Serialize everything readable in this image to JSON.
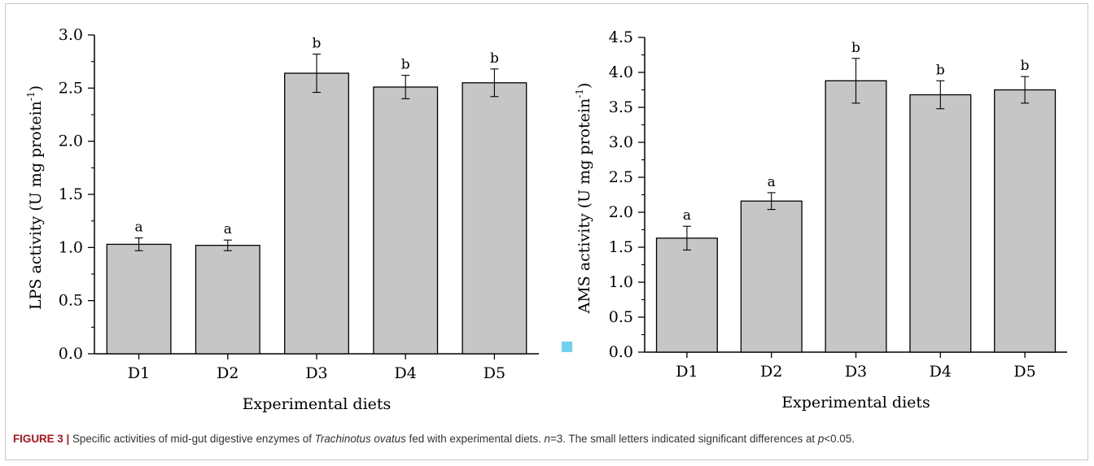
{
  "figure": {
    "label": "FIGURE 3",
    "separator": "|",
    "caption_parts": [
      {
        "text": " Specific activities of mid-gut digestive enzymes of ",
        "italic": false
      },
      {
        "text": "Trachinotus ovatus",
        "italic": true
      },
      {
        "text": " fed with experimental diets. ",
        "italic": false
      },
      {
        "text": "n",
        "italic": true
      },
      {
        "text": "=3. The small letters indicated significant differences at ",
        "italic": false
      },
      {
        "text": "p",
        "italic": true
      },
      {
        "text": "<0.05.",
        "italic": false
      }
    ]
  },
  "colors": {
    "bar_fill": "#c6c6c6",
    "bar_stroke": "#000000",
    "axis": "#000000"
  },
  "chart_data": [
    {
      "type": "bar",
      "categories": [
        "D1",
        "D2",
        "D3",
        "D4",
        "D5"
      ],
      "values": [
        1.03,
        1.02,
        2.64,
        2.51,
        2.55
      ],
      "errors": [
        0.06,
        0.05,
        0.18,
        0.11,
        0.13
      ],
      "letters": [
        "a",
        "a",
        "b",
        "b",
        "b"
      ],
      "xlabel": "Experimental diets",
      "ylabel_main": "LPS activity (U mg protein",
      "ylabel_sup": "-1",
      "ylabel_end": ")",
      "ylim": [
        0,
        3.0
      ],
      "yticks": [
        "0.0",
        "0.5",
        "1.0",
        "1.5",
        "2.0",
        "2.5",
        "3.0"
      ]
    },
    {
      "type": "bar",
      "categories": [
        "D1",
        "D2",
        "D3",
        "D4",
        "D5"
      ],
      "values": [
        1.63,
        2.16,
        3.88,
        3.68,
        3.75
      ],
      "errors": [
        0.17,
        0.12,
        0.32,
        0.2,
        0.19
      ],
      "letters": [
        "a",
        "a",
        "b",
        "b",
        "b"
      ],
      "xlabel": "Experimental diets",
      "ylabel_main": "AMS activity (U mg protein",
      "ylabel_sup": "-1",
      "ylabel_end": ")",
      "ylim": [
        0,
        4.5
      ],
      "yticks": [
        "0.0",
        "0.5",
        "1.0",
        "1.5",
        "2.0",
        "2.5",
        "3.0",
        "3.5",
        "4.0",
        "4.5"
      ]
    }
  ]
}
